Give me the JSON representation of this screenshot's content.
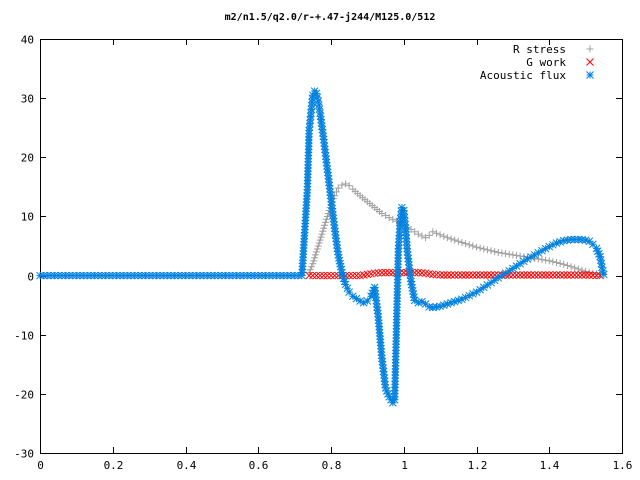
{
  "chart_data": {
    "type": "scatter",
    "title": "m2/n1.5/q2.0/r-+.47-j244/M125.0/512",
    "xlabel": "",
    "ylabel": "",
    "xlim": [
      0,
      1.6
    ],
    "ylim": [
      -30,
      40
    ],
    "x_ticks": [
      "0",
      "0.2",
      "0.4",
      "0.6",
      "0.8",
      "1",
      "1.2",
      "1.4",
      "1.6"
    ],
    "y_ticks": [
      "40",
      "30",
      "20",
      "10",
      "0",
      "-10",
      "-20",
      "-30"
    ],
    "legend_position": "top-right",
    "grid": false,
    "series": [
      {
        "name": "R stress",
        "marker": "plus",
        "color": "#a0a0a0",
        "x": [
          0.74,
          0.75,
          0.76,
          0.77,
          0.78,
          0.79,
          0.8,
          0.81,
          0.82,
          0.83,
          0.84,
          0.85,
          0.86,
          0.88,
          0.9,
          0.92,
          0.94,
          0.96,
          0.98,
          1.0,
          1.02,
          1.04,
          1.06,
          1.07,
          1.08,
          1.1,
          1.12,
          1.14,
          1.16,
          1.18,
          1.2,
          1.22,
          1.24,
          1.26,
          1.28,
          1.3,
          1.32,
          1.34,
          1.36,
          1.38,
          1.4,
          1.42,
          1.44,
          1.46,
          1.48,
          1.5,
          1.52,
          1.54
        ],
        "y": [
          0.5,
          2,
          4,
          6,
          8,
          10,
          12,
          13.5,
          14.8,
          15.3,
          15.5,
          15.2,
          14.6,
          13.5,
          12.5,
          11.5,
          10.5,
          9.8,
          9.2,
          8.5,
          7.8,
          7.0,
          6.4,
          6.8,
          7.4,
          6.9,
          6.4,
          6.0,
          5.6,
          5.2,
          4.8,
          4.5,
          4.2,
          3.9,
          3.7,
          3.5,
          3.3,
          3.1,
          2.9,
          2.7,
          2.5,
          2.2,
          1.9,
          1.5,
          1.1,
          0.7,
          0.4,
          0.2
        ]
      },
      {
        "name": "G work",
        "marker": "cross",
        "color": "#ff0000",
        "x": [
          0.74,
          0.76,
          0.78,
          0.8,
          0.82,
          0.84,
          0.86,
          0.88,
          0.9,
          0.92,
          0.94,
          0.96,
          0.98,
          1.0,
          1.02,
          1.04,
          1.06,
          1.08,
          1.1,
          1.12,
          1.14,
          1.16,
          1.18,
          1.2,
          1.22,
          1.24,
          1.26,
          1.28,
          1.3,
          1.32,
          1.34,
          1.36,
          1.38,
          1.4,
          1.42,
          1.44,
          1.46,
          1.48,
          1.5,
          1.52,
          1.54
        ],
        "y": [
          0,
          0,
          0,
          0,
          0,
          0,
          0,
          0,
          0.2,
          0.4,
          0.5,
          0.5,
          0.5,
          0.5,
          0.5,
          0.5,
          0.4,
          0.2,
          0.1,
          0.1,
          0.1,
          0.1,
          0.1,
          0.1,
          0.1,
          0.1,
          0.1,
          0.1,
          0.1,
          0.1,
          0.1,
          0.1,
          0.1,
          0.1,
          0.1,
          0.1,
          0.1,
          0.1,
          0.1,
          0.05,
          0
        ]
      },
      {
        "name": "Acoustic flux",
        "marker": "star",
        "color": "#0080e0",
        "x": [
          0.0,
          0.02,
          0.04,
          0.06,
          0.08,
          0.1,
          0.12,
          0.14,
          0.16,
          0.18,
          0.2,
          0.22,
          0.24,
          0.26,
          0.28,
          0.3,
          0.32,
          0.34,
          0.36,
          0.38,
          0.4,
          0.42,
          0.44,
          0.46,
          0.48,
          0.5,
          0.52,
          0.54,
          0.56,
          0.58,
          0.6,
          0.62,
          0.64,
          0.66,
          0.68,
          0.7,
          0.72,
          0.735,
          0.74,
          0.745,
          0.75,
          0.755,
          0.76,
          0.765,
          0.77,
          0.78,
          0.79,
          0.8,
          0.81,
          0.82,
          0.83,
          0.84,
          0.85,
          0.86,
          0.87,
          0.88,
          0.89,
          0.9,
          0.91,
          0.92,
          0.93,
          0.94,
          0.95,
          0.96,
          0.97,
          0.975,
          0.98,
          0.985,
          0.99,
          0.995,
          1.0,
          1.005,
          1.01,
          1.02,
          1.03,
          1.04,
          1.05,
          1.06,
          1.07,
          1.08,
          1.1,
          1.12,
          1.14,
          1.16,
          1.18,
          1.2,
          1.22,
          1.24,
          1.26,
          1.28,
          1.3,
          1.32,
          1.34,
          1.36,
          1.38,
          1.4,
          1.42,
          1.44,
          1.46,
          1.48,
          1.5,
          1.51,
          1.52,
          1.53,
          1.54,
          1.545,
          1.55
        ],
        "y": [
          0,
          0,
          0,
          0,
          0,
          0,
          0,
          0,
          0,
          0,
          0,
          0,
          0,
          0,
          0,
          0,
          0,
          0,
          0,
          0,
          0,
          0,
          0,
          0,
          0,
          0,
          0,
          0,
          0,
          0,
          0,
          0,
          0,
          0,
          0,
          0,
          0,
          14.5,
          24.5,
          27.5,
          30.5,
          31.2,
          30.8,
          29.5,
          27.5,
          23,
          18,
          13,
          8,
          3.5,
          0.5,
          -1.5,
          -2.8,
          -3.5,
          -3.9,
          -4.3,
          -4.6,
          -4.3,
          -3.5,
          -2.0,
          -7,
          -14,
          -19,
          -20.5,
          -21.5,
          -21,
          -9,
          4,
          9,
          11.5,
          11,
          8,
          4,
          -1,
          -4.2,
          -4.6,
          -4.4,
          -4.8,
          -5.3,
          -5.4,
          -5.2,
          -4.8,
          -4.4,
          -4.0,
          -3.4,
          -2.8,
          -2.0,
          -1.2,
          -0.4,
          0.4,
          1.2,
          2.0,
          2.8,
          3.5,
          4.2,
          4.9,
          5.5,
          5.9,
          6.1,
          6.1,
          6.0,
          5.8,
          5.3,
          4.6,
          3.2,
          1.4,
          0.2
        ]
      }
    ]
  }
}
